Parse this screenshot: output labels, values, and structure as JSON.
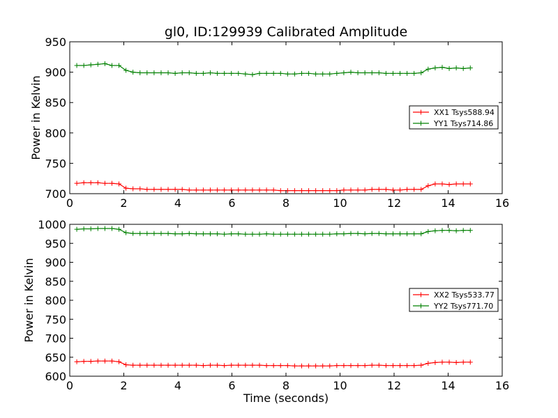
{
  "figure": {
    "title": "gl0, ID:129939 Calibrated Amplitude"
  },
  "chart_data": [
    {
      "type": "line",
      "title": "gl0, ID:129939 Calibrated Amplitude",
      "xlabel": "",
      "ylabel": "Power in Kelvin",
      "xlim": [
        0,
        16
      ],
      "ylim": [
        700,
        950
      ],
      "xticks": [
        0,
        2,
        4,
        6,
        8,
        10,
        12,
        14,
        16
      ],
      "yticks": [
        700,
        750,
        800,
        850,
        900,
        950
      ],
      "grid": false,
      "legend_position": "right",
      "x": [
        0.26,
        0.52,
        0.78,
        1.04,
        1.3,
        1.56,
        1.82,
        2.08,
        2.34,
        2.6,
        2.86,
        3.12,
        3.38,
        3.64,
        3.9,
        4.16,
        4.42,
        4.68,
        4.94,
        5.2,
        5.46,
        5.72,
        5.98,
        6.24,
        6.5,
        6.76,
        7.02,
        7.28,
        7.54,
        7.8,
        8.06,
        8.32,
        8.58,
        8.84,
        9.1,
        9.36,
        9.62,
        9.88,
        10.14,
        10.4,
        10.66,
        10.92,
        11.18,
        11.44,
        11.7,
        11.96,
        12.22,
        12.48,
        12.74,
        13.0,
        13.26,
        13.52,
        13.78,
        14.04,
        14.3,
        14.56,
        14.82
      ],
      "series": [
        {
          "name": "XX1 Tsys588.94",
          "color": "#ff0000",
          "values": [
            717,
            718,
            718,
            718,
            717,
            717,
            716,
            709,
            708,
            708,
            707,
            707,
            707,
            707,
            707,
            707,
            706,
            706,
            706,
            706,
            706,
            706,
            706,
            706,
            706,
            706,
            706,
            706,
            706,
            705,
            705,
            705,
            705,
            705,
            705,
            705,
            705,
            705,
            706,
            706,
            706,
            706,
            707,
            707,
            707,
            706,
            706,
            707,
            707,
            707,
            713,
            716,
            716,
            715,
            716,
            716,
            716
          ]
        },
        {
          "name": "YY1 Tsys714.86",
          "color": "#008000",
          "values": [
            911,
            911,
            912,
            913,
            914,
            911,
            911,
            903,
            900,
            899,
            899,
            899,
            899,
            899,
            898,
            899,
            899,
            898,
            898,
            899,
            898,
            898,
            898,
            898,
            897,
            896,
            898,
            898,
            898,
            898,
            897,
            897,
            898,
            898,
            897,
            897,
            897,
            898,
            899,
            900,
            899,
            899,
            899,
            899,
            898,
            898,
            898,
            898,
            898,
            899,
            905,
            907,
            908,
            906,
            907,
            906,
            907
          ]
        }
      ]
    },
    {
      "type": "line",
      "title": "",
      "xlabel": "Time (seconds)",
      "ylabel": "Power in Kelvin",
      "xlim": [
        0,
        16
      ],
      "ylim": [
        600,
        1000
      ],
      "xticks": [
        0,
        2,
        4,
        6,
        8,
        10,
        12,
        14,
        16
      ],
      "yticks": [
        600,
        650,
        700,
        750,
        800,
        850,
        900,
        950,
        1000
      ],
      "grid": false,
      "legend_position": "right",
      "x": [
        0.26,
        0.52,
        0.78,
        1.04,
        1.3,
        1.56,
        1.82,
        2.08,
        2.34,
        2.6,
        2.86,
        3.12,
        3.38,
        3.64,
        3.9,
        4.16,
        4.42,
        4.68,
        4.94,
        5.2,
        5.46,
        5.72,
        5.98,
        6.24,
        6.5,
        6.76,
        7.02,
        7.28,
        7.54,
        7.8,
        8.06,
        8.32,
        8.58,
        8.84,
        9.1,
        9.36,
        9.62,
        9.88,
        10.14,
        10.4,
        10.66,
        10.92,
        11.18,
        11.44,
        11.7,
        11.96,
        12.22,
        12.48,
        12.74,
        13.0,
        13.26,
        13.52,
        13.78,
        14.04,
        14.3,
        14.56,
        14.82
      ],
      "series": [
        {
          "name": "XX2 Tsys533.77",
          "color": "#ff0000",
          "values": [
            638,
            639,
            639,
            640,
            640,
            640,
            638,
            630,
            629,
            629,
            629,
            629,
            629,
            629,
            629,
            629,
            629,
            629,
            628,
            629,
            629,
            628,
            629,
            629,
            629,
            629,
            629,
            628,
            628,
            628,
            628,
            627,
            627,
            627,
            627,
            627,
            627,
            628,
            628,
            628,
            628,
            628,
            629,
            629,
            628,
            628,
            628,
            628,
            628,
            629,
            634,
            636,
            637,
            637,
            636,
            637,
            637
          ]
        },
        {
          "name": "YY2 Tsys771.70",
          "color": "#008000",
          "values": [
            987,
            988,
            988,
            989,
            989,
            989,
            987,
            978,
            976,
            976,
            976,
            976,
            976,
            976,
            975,
            975,
            976,
            975,
            975,
            975,
            975,
            974,
            975,
            975,
            974,
            974,
            974,
            975,
            974,
            974,
            974,
            974,
            974,
            974,
            974,
            974,
            974,
            975,
            975,
            976,
            976,
            975,
            976,
            976,
            975,
            975,
            975,
            975,
            975,
            975,
            981,
            983,
            984,
            984,
            983,
            984,
            984
          ]
        }
      ]
    }
  ]
}
